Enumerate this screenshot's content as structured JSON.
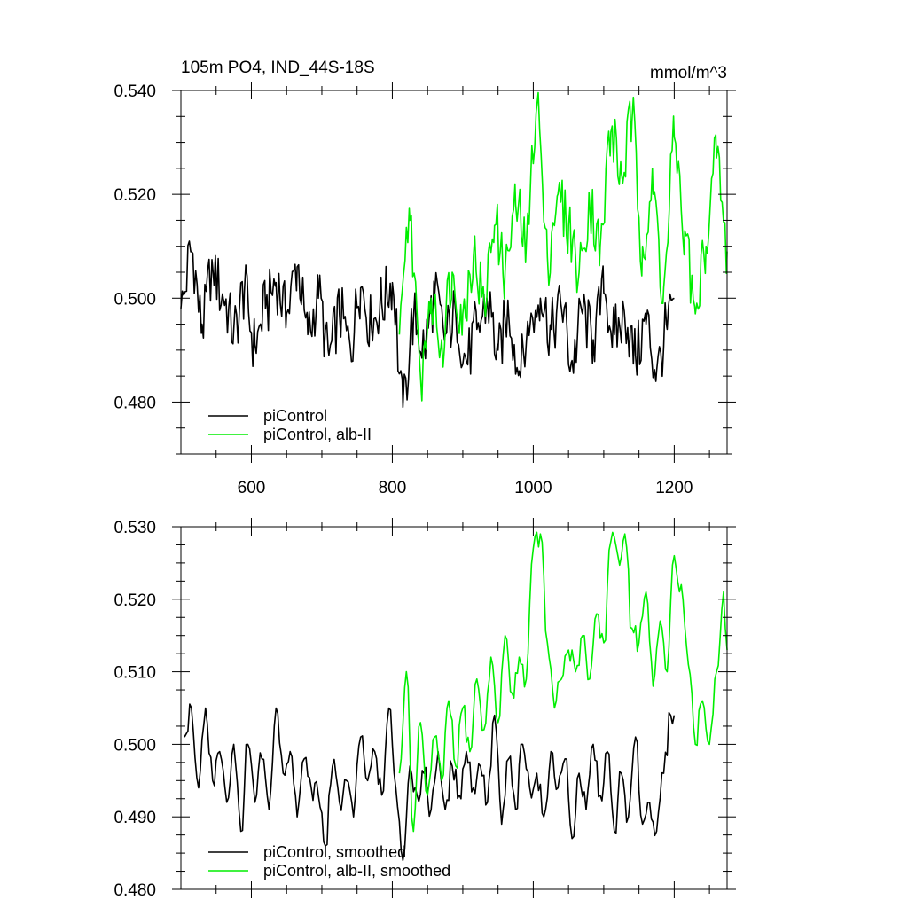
{
  "colors": {
    "piControl": "#000000",
    "albII": "#00ee00",
    "axis": "#000000"
  },
  "chart_data": [
    {
      "type": "line",
      "title_left": "105m PO4, IND_44S-18S",
      "title_right": "mmol/m^3",
      "xlim": [
        500,
        1275
      ],
      "ylim": [
        0.47,
        0.54
      ],
      "x_major_ticks": [
        600,
        800,
        1000,
        1200
      ],
      "x_tick_labels": [
        "600",
        "800",
        "1000",
        "1200"
      ],
      "y_major_ticks": [
        0.48,
        0.5,
        0.52,
        0.54
      ],
      "y_tick_labels": [
        "0.480",
        "0.500",
        "0.520",
        "0.540"
      ],
      "legend": [
        "piControl",
        "piControl, alb-II"
      ],
      "legend_position": "bottom-left",
      "series": [
        {
          "name": "piControl",
          "color": "#000000",
          "x": [
            500,
            515,
            530,
            545,
            560,
            575,
            590,
            605,
            620,
            635,
            650,
            665,
            680,
            695,
            710,
            725,
            740,
            755,
            770,
            785,
            800,
            815,
            830,
            845,
            860,
            875,
            890,
            905,
            920,
            935,
            950,
            965,
            980,
            995,
            1010,
            1025,
            1040,
            1055,
            1070,
            1085,
            1100,
            1115,
            1130,
            1145,
            1160,
            1175,
            1190,
            1200
          ],
          "values": [
            0.498,
            0.509,
            0.495,
            0.506,
            0.5,
            0.494,
            0.501,
            0.491,
            0.498,
            0.503,
            0.497,
            0.506,
            0.493,
            0.5,
            0.489,
            0.497,
            0.491,
            0.502,
            0.495,
            0.499,
            0.503,
            0.479,
            0.496,
            0.491,
            0.5,
            0.493,
            0.497,
            0.488,
            0.494,
            0.499,
            0.49,
            0.497,
            0.486,
            0.494,
            0.5,
            0.494,
            0.498,
            0.488,
            0.497,
            0.492,
            0.501,
            0.493,
            0.496,
            0.489,
            0.495,
            0.486,
            0.494,
            0.5
          ]
        },
        {
          "name": "piControl, alb-II",
          "color": "#00ee00",
          "x": [
            810,
            825,
            840,
            855,
            870,
            885,
            900,
            915,
            930,
            945,
            960,
            975,
            990,
            1005,
            1020,
            1035,
            1050,
            1065,
            1080,
            1095,
            1110,
            1125,
            1140,
            1155,
            1170,
            1185,
            1200,
            1215,
            1230,
            1245,
            1260,
            1275
          ],
          "values": [
            0.493,
            0.515,
            0.485,
            0.5,
            0.492,
            0.505,
            0.497,
            0.508,
            0.5,
            0.514,
            0.505,
            0.518,
            0.51,
            0.537,
            0.508,
            0.52,
            0.514,
            0.505,
            0.518,
            0.51,
            0.532,
            0.524,
            0.534,
            0.51,
            0.52,
            0.502,
            0.531,
            0.513,
            0.497,
            0.51,
            0.527,
            0.509
          ]
        }
      ]
    },
    {
      "type": "line",
      "xlim": [
        500,
        1275
      ],
      "ylim": [
        0.48,
        0.53
      ],
      "x_major_ticks": [
        600,
        800,
        1000,
        1200
      ],
      "y_major_ticks": [
        0.48,
        0.49,
        0.5,
        0.51,
        0.52,
        0.53
      ],
      "y_tick_labels": [
        "0.480",
        "0.490",
        "0.500",
        "0.510",
        "0.520",
        "0.530"
      ],
      "legend": [
        "piControl, smoothed",
        "piControl, alb-II, smoothed"
      ],
      "legend_position": "bottom-left",
      "series": [
        {
          "name": "piControl, smoothed",
          "color": "#000000",
          "x": [
            505,
            515,
            525,
            535,
            545,
            555,
            565,
            575,
            585,
            595,
            605,
            615,
            625,
            635,
            645,
            655,
            665,
            675,
            685,
            695,
            705,
            715,
            725,
            735,
            745,
            755,
            765,
            775,
            785,
            795,
            805,
            815,
            825,
            835,
            845,
            855,
            865,
            875,
            885,
            895,
            905,
            915,
            925,
            935,
            945,
            955,
            965,
            975,
            985,
            995,
            1005,
            1015,
            1025,
            1035,
            1045,
            1055,
            1065,
            1075,
            1085,
            1095,
            1105,
            1115,
            1125,
            1135,
            1145,
            1155,
            1165,
            1175,
            1185,
            1195,
            1200
          ],
          "values": [
            0.501,
            0.505,
            0.494,
            0.505,
            0.495,
            0.499,
            0.492,
            0.5,
            0.488,
            0.5,
            0.492,
            0.498,
            0.491,
            0.505,
            0.496,
            0.499,
            0.49,
            0.498,
            0.494,
            0.493,
            0.486,
            0.497,
            0.492,
            0.495,
            0.49,
            0.501,
            0.495,
            0.499,
            0.493,
            0.505,
            0.494,
            0.484,
            0.497,
            0.493,
            0.496,
            0.491,
            0.499,
            0.491,
            0.497,
            0.493,
            0.499,
            0.494,
            0.497,
            0.492,
            0.504,
            0.489,
            0.498,
            0.491,
            0.5,
            0.494,
            0.496,
            0.49,
            0.499,
            0.494,
            0.498,
            0.487,
            0.496,
            0.491,
            0.5,
            0.493,
            0.499,
            0.488,
            0.496,
            0.49,
            0.501,
            0.489,
            0.492,
            0.488,
            0.496,
            0.504,
            0.504
          ]
        },
        {
          "name": "piControl, alb-II, smoothed",
          "color": "#00ee00",
          "x": [
            810,
            820,
            830,
            840,
            850,
            860,
            870,
            880,
            890,
            900,
            910,
            920,
            930,
            940,
            950,
            960,
            970,
            980,
            990,
            1000,
            1010,
            1020,
            1030,
            1040,
            1050,
            1060,
            1070,
            1080,
            1090,
            1100,
            1110,
            1120,
            1130,
            1140,
            1150,
            1160,
            1170,
            1180,
            1190,
            1200,
            1210,
            1220,
            1230,
            1240,
            1250,
            1260,
            1270,
            1275
          ],
          "values": [
            0.496,
            0.51,
            0.488,
            0.503,
            0.493,
            0.501,
            0.495,
            0.506,
            0.497,
            0.505,
            0.499,
            0.509,
            0.502,
            0.512,
            0.503,
            0.515,
            0.507,
            0.512,
            0.509,
            0.527,
            0.529,
            0.514,
            0.505,
            0.509,
            0.513,
            0.51,
            0.515,
            0.509,
            0.518,
            0.514,
            0.528,
            0.526,
            0.529,
            0.516,
            0.514,
            0.521,
            0.508,
            0.517,
            0.51,
            0.526,
            0.522,
            0.511,
            0.5,
            0.506,
            0.5,
            0.51,
            0.521,
            0.513
          ]
        }
      ]
    }
  ]
}
